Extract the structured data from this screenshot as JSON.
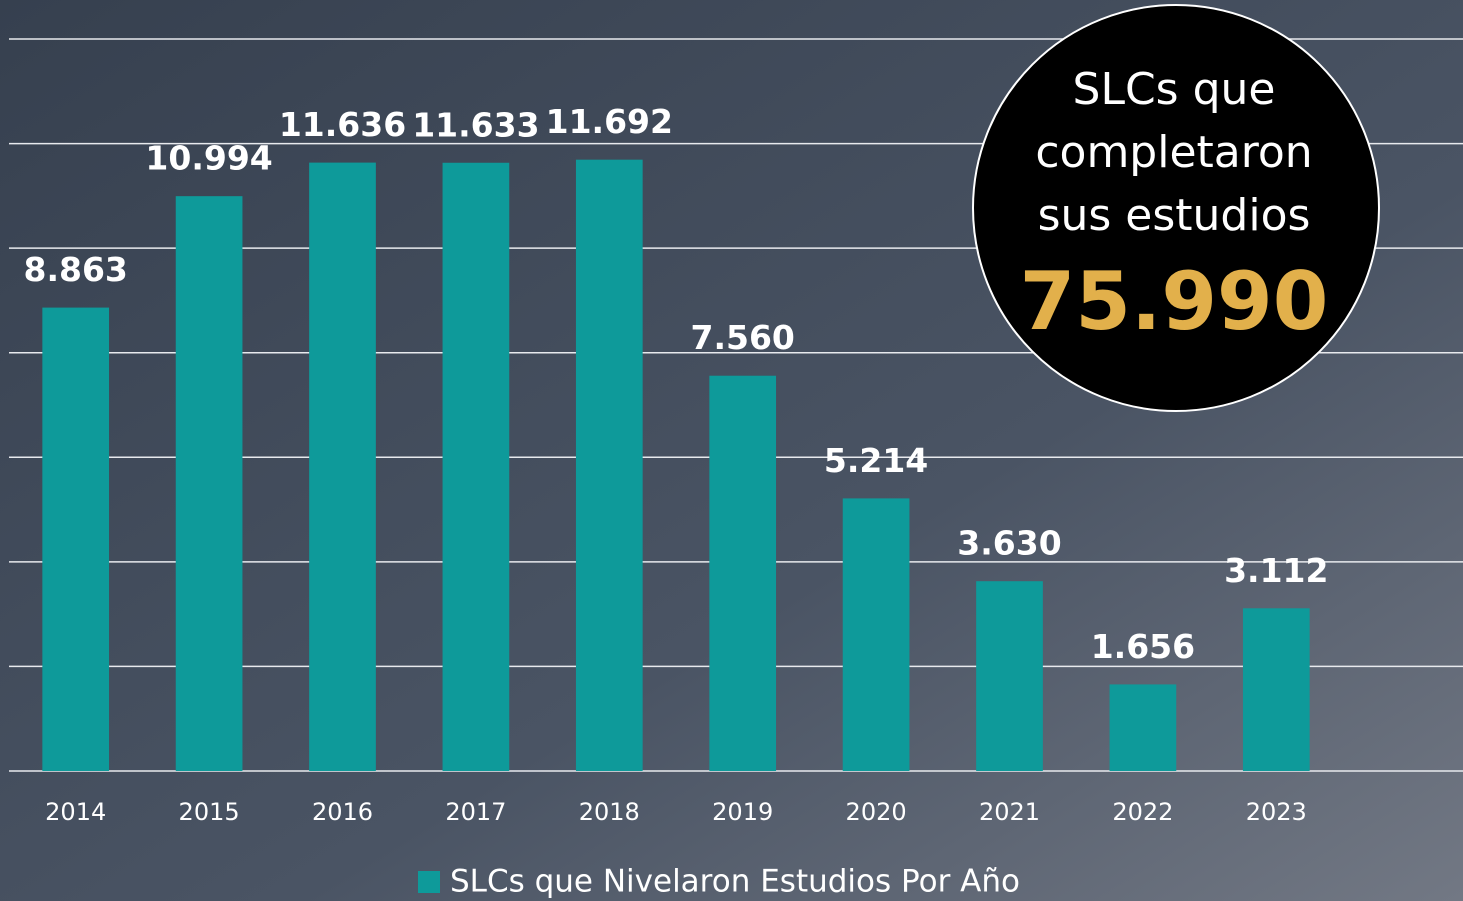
{
  "chart_data": {
    "type": "bar",
    "categories": [
      "2014",
      "2015",
      "2016",
      "2017",
      "2018",
      "2019",
      "2020",
      "2021",
      "2022",
      "2023"
    ],
    "series": [
      {
        "name": "SLCs que Nivelaron Estudios Por Año",
        "color": "#0e9a9a",
        "values": [
          8863,
          10994,
          11636,
          11633,
          11692,
          7560,
          5214,
          3630,
          1656,
          3112
        ],
        "value_labels": [
          "8.863",
          "10.994",
          "11.636",
          "11.633",
          "11.692",
          "7.560",
          "5.214",
          "3.630",
          "1.656",
          "3.112"
        ]
      }
    ],
    "ylim": [
      0,
      14000
    ],
    "yticks": [
      0,
      2000,
      4000,
      6000,
      8000,
      10000,
      12000,
      14000
    ],
    "grid": true,
    "annotation": {
      "lines": [
        "SLCs que",
        "completaron",
        "sus estudios"
      ],
      "total": "75.990"
    }
  }
}
